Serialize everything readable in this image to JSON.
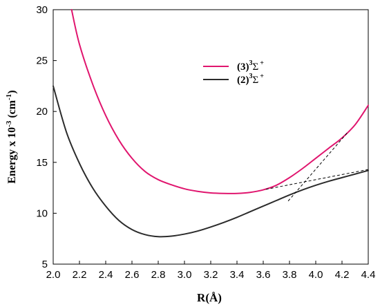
{
  "chart_data": {
    "type": "line",
    "xlabel": "R(Å)",
    "ylabel_main": "Energy x 10",
    "ylabel_exp": "-3",
    "ylabel_unit_pre": " (cm",
    "ylabel_unit_exp": "-1",
    "ylabel_unit_post": ")",
    "xlim": [
      2.0,
      4.4
    ],
    "ylim": [
      5,
      30
    ],
    "xticks": [
      "2.0",
      "2.2",
      "2.4",
      "2.6",
      "2.8",
      "3.0",
      "3.2",
      "3.4",
      "3.6",
      "3.8",
      "4.0",
      "4.2",
      "4.4"
    ],
    "yticks": [
      "5",
      "10",
      "15",
      "20",
      "25",
      "30"
    ],
    "legend_position": "top-center",
    "series": [
      {
        "name": "(3)3Σ+",
        "label_main": "(3)",
        "label_sup": "3",
        "label_sym": "Σ",
        "label_sup2": "+",
        "color": "#e0156e",
        "x": [
          2.14,
          2.2,
          2.3,
          2.4,
          2.5,
          2.6,
          2.7,
          2.8,
          2.9,
          3.0,
          3.1,
          3.2,
          3.3,
          3.4,
          3.5,
          3.6,
          3.7,
          3.8,
          3.9,
          4.0,
          4.1,
          4.2,
          4.3,
          4.4
        ],
        "y": [
          30.0,
          26.6,
          22.7,
          19.6,
          17.2,
          15.4,
          14.1,
          13.3,
          12.8,
          12.4,
          12.15,
          12.0,
          11.95,
          11.95,
          12.05,
          12.3,
          12.75,
          13.5,
          14.4,
          15.4,
          16.4,
          17.4,
          18.7,
          20.6
        ]
      },
      {
        "name": "(2)3Σ+",
        "label_main": "(2)",
        "label_sup": "3",
        "label_sym": "Σ",
        "label_sup2": "+",
        "color": "#2b2b2b",
        "x": [
          2.0,
          2.1,
          2.2,
          2.3,
          2.4,
          2.5,
          2.6,
          2.7,
          2.8,
          2.9,
          3.0,
          3.1,
          3.2,
          3.3,
          3.4,
          3.5,
          3.6,
          3.7,
          3.8,
          3.9,
          4.0,
          4.1,
          4.2,
          4.3,
          4.4
        ],
        "y": [
          22.5,
          18.0,
          14.9,
          12.5,
          10.7,
          9.3,
          8.4,
          7.9,
          7.7,
          7.75,
          7.95,
          8.25,
          8.65,
          9.1,
          9.6,
          10.15,
          10.7,
          11.25,
          11.8,
          12.3,
          12.75,
          13.15,
          13.5,
          13.85,
          14.2
        ]
      }
    ],
    "dashed_lines": [
      {
        "x": [
          3.62,
          4.4
        ],
        "y": [
          12.35,
          14.3
        ]
      },
      {
        "x": [
          3.79,
          4.24
        ],
        "y": [
          11.2,
          17.9
        ]
      }
    ]
  }
}
